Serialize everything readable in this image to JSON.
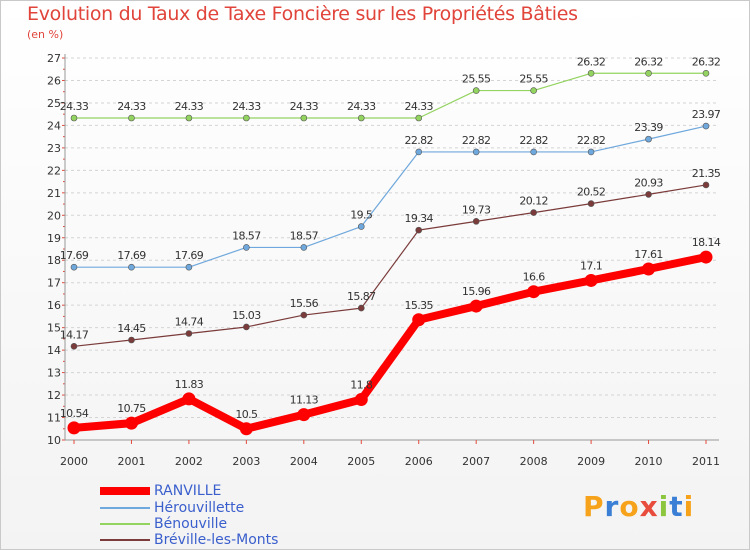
{
  "chart_data": {
    "type": "line",
    "title": "Evolution du Taux de Taxe Foncière sur les Propriétés Bâties",
    "subtitle": "(en %)",
    "x": [
      "2000",
      "2001",
      "2002",
      "2003",
      "2004",
      "2005",
      "2006",
      "2007",
      "2008",
      "2009",
      "2010",
      "2011"
    ],
    "y_ticks": [
      10,
      11,
      12,
      13,
      14,
      15,
      16,
      17,
      18,
      19,
      20,
      21,
      22,
      23,
      24,
      25,
      26,
      27
    ],
    "ylim": [
      10,
      27
    ],
    "grid": "horizontal dashed",
    "legend_placement": "bottom-left",
    "series": [
      {
        "name": "RANVILLE",
        "color": "#ff0000",
        "values": [
          10.54,
          10.75,
          11.83,
          10.5,
          11.13,
          11.8,
          15.35,
          15.96,
          16.6,
          17.1,
          17.61,
          18.14
        ],
        "labels": [
          "10.54",
          "10.75",
          "11.83",
          "10.5",
          "11.13",
          "11.8",
          "15.35",
          "15.96",
          "16.6",
          "17.1",
          "17.61",
          "18.14"
        ]
      },
      {
        "name": "Hérouvillette",
        "color": "#6fa8dc",
        "values": [
          17.69,
          17.69,
          17.69,
          18.57,
          18.57,
          19.5,
          22.82,
          22.82,
          22.82,
          22.82,
          23.39,
          23.97
        ],
        "labels": [
          "17.69",
          "17.69",
          "17.69",
          "18.57",
          "18.57",
          "19.5",
          "22.82",
          "22.82",
          "22.82",
          "22.82",
          "23.39",
          "23.97"
        ]
      },
      {
        "name": "Bénouville",
        "color": "#93d35f",
        "values": [
          24.33,
          24.33,
          24.33,
          24.33,
          24.33,
          24.33,
          24.33,
          25.55,
          25.55,
          26.32,
          26.32,
          26.32
        ],
        "labels": [
          "24.33",
          "24.33",
          "24.33",
          "24.33",
          "24.33",
          "24.33",
          "24.33",
          "25.55",
          "25.55",
          "26.32",
          "26.32",
          "26.32"
        ]
      },
      {
        "name": "Bréville-les-Monts",
        "color": "#7b3b3b",
        "values": [
          14.17,
          14.45,
          14.74,
          15.03,
          15.56,
          15.87,
          19.34,
          19.73,
          20.12,
          20.52,
          20.93,
          21.35
        ],
        "labels": [
          "14.17",
          "14.45",
          "14.74",
          "15.03",
          "15.56",
          "15.87",
          "19.34",
          "19.73",
          "20.12",
          "20.52",
          "20.93",
          "21.35"
        ]
      }
    ]
  },
  "logo": {
    "letters": [
      "P",
      "r",
      "o",
      "x",
      "i",
      "t",
      "i"
    ],
    "colors": [
      "#f7a21b",
      "#3a7fd5",
      "#f7a21b",
      "#e84c3d",
      "#8cc63f",
      "#3a7fd5",
      "#f7a21b"
    ]
  }
}
